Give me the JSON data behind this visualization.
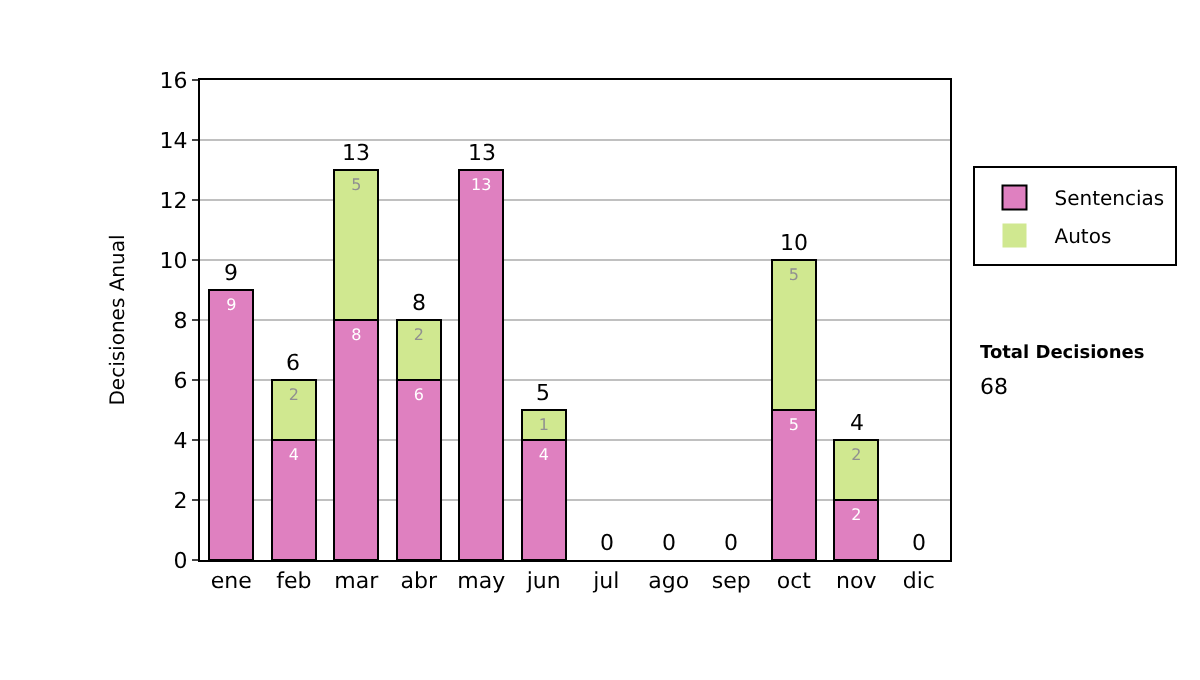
{
  "chart_data": {
    "type": "bar",
    "stacked": true,
    "ylabel": "Decisiones Anual",
    "categories": [
      "ene",
      "feb",
      "mar",
      "abr",
      "may",
      "jun",
      "jul",
      "ago",
      "sep",
      "oct",
      "nov",
      "dic"
    ],
    "series": [
      {
        "name": "Sentencias",
        "color": "#df80c0",
        "values": [
          9,
          4,
          8,
          6,
          13,
          4,
          0,
          0,
          0,
          5,
          2,
          0
        ],
        "value_labels": [
          "9",
          "4",
          "8",
          "6",
          "13",
          "4",
          null,
          null,
          null,
          "5",
          "2",
          null
        ]
      },
      {
        "name": "Autos",
        "color": "#d0e890",
        "values": [
          0,
          2,
          5,
          2,
          0,
          1,
          0,
          0,
          0,
          5,
          2,
          0
        ],
        "value_labels": [
          null,
          "2",
          "5",
          "2",
          null,
          "1",
          null,
          null,
          null,
          "5",
          "2",
          null
        ]
      }
    ],
    "totals": [
      "9",
      "6",
      "13",
      "8",
      "13",
      "5",
      "0",
      "0",
      "0",
      "10",
      "4",
      "0"
    ],
    "ylim": [
      0,
      16
    ],
    "yticks": [
      0,
      2,
      4,
      6,
      8,
      10,
      12,
      14,
      16
    ],
    "grid": "y",
    "legend": "right",
    "annotations": [
      "Total Decisiones",
      "68"
    ]
  }
}
